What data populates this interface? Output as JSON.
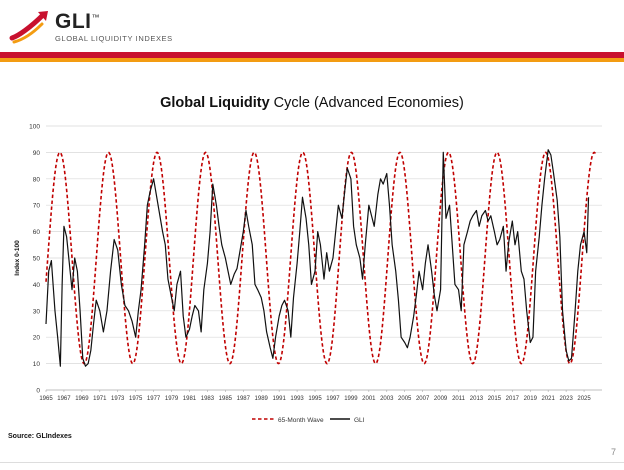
{
  "header": {
    "logo_text": "GLI",
    "logo_trademark": "™",
    "logo_subtitle": "GLOBAL LIQUIDITY INDEXES"
  },
  "colors": {
    "brand_red": "#c8102e",
    "brand_orange": "#f39c12",
    "wave": "#c00000",
    "gli": "#111111",
    "grid": "#d9d9d9"
  },
  "chart_data": {
    "type": "line",
    "title_bold": "Global Liquidity",
    "title_rest": " Cycle (Advanced Economies)",
    "xlabel": "",
    "ylabel": "Index 0-100",
    "xlim": [
      1965,
      2027
    ],
    "ylim": [
      0,
      100
    ],
    "y_ticks": [
      0,
      10,
      20,
      30,
      40,
      50,
      60,
      70,
      80,
      90,
      100
    ],
    "x_ticks": [
      1965,
      1967,
      1969,
      1971,
      1973,
      1975,
      1977,
      1979,
      1981,
      1983,
      1985,
      1987,
      1989,
      1991,
      1993,
      1995,
      1997,
      1999,
      2001,
      2003,
      2005,
      2007,
      2009,
      2011,
      2013,
      2015,
      2017,
      2019,
      2021,
      2023,
      2025
    ],
    "grid": "horizontal",
    "legend_position": "bottom-center",
    "series": [
      {
        "name": "65-Month Wave",
        "style": "dashed",
        "wave": {
          "period_months": 65,
          "center": 50,
          "amplitude": 40,
          "first_peak": 1966.55,
          "start": 1965,
          "end": 2026.35
        }
      },
      {
        "name": "GLI",
        "style": "solid",
        "x": [
          1965.0,
          1965.3,
          1965.6,
          1966.0,
          1966.3,
          1966.6,
          1966.8,
          1967.0,
          1967.3,
          1967.6,
          1967.9,
          1968.2,
          1968.5,
          1968.8,
          1969.1,
          1969.4,
          1969.7,
          1970.0,
          1970.3,
          1970.6,
          1971.0,
          1971.4,
          1971.8,
          1972.2,
          1972.6,
          1973.0,
          1973.4,
          1973.8,
          1974.2,
          1974.6,
          1975.0,
          1975.3,
          1975.6,
          1976.0,
          1976.3,
          1976.6,
          1977.0,
          1977.3,
          1977.6,
          1978.0,
          1978.3,
          1978.6,
          1979.0,
          1979.3,
          1979.6,
          1980.0,
          1980.3,
          1980.6,
          1981.0,
          1981.3,
          1981.6,
          1982.0,
          1982.3,
          1982.6,
          1983.0,
          1983.3,
          1983.6,
          1984.0,
          1984.3,
          1984.6,
          1985.0,
          1985.3,
          1985.6,
          1986.0,
          1986.3,
          1986.6,
          1987.0,
          1987.3,
          1987.6,
          1988.0,
          1988.3,
          1988.6,
          1989.0,
          1989.3,
          1989.6,
          1990.0,
          1990.3,
          1990.6,
          1991.0,
          1991.3,
          1991.6,
          1992.0,
          1992.3,
          1992.6,
          1993.0,
          1993.3,
          1993.6,
          1994.0,
          1994.3,
          1994.6,
          1995.0,
          1995.3,
          1995.6,
          1996.0,
          1996.3,
          1996.6,
          1997.0,
          1997.3,
          1997.6,
          1998.0,
          1998.3,
          1998.6,
          1999.0,
          1999.3,
          1999.6,
          2000.0,
          2000.3,
          2000.6,
          2001.0,
          2001.3,
          2001.6,
          2002.0,
          2002.3,
          2002.6,
          2003.0,
          2003.3,
          2003.6,
          2004.0,
          2004.3,
          2004.6,
          2005.0,
          2005.3,
          2005.6,
          2006.0,
          2006.3,
          2006.6,
          2007.0,
          2007.3,
          2007.6,
          2008.0,
          2008.3,
          2008.6,
          2009.0,
          2009.3,
          2009.6,
          2010.0,
          2010.3,
          2010.6,
          2011.0,
          2011.3,
          2011.6,
          2012.0,
          2012.3,
          2012.6,
          2013.0,
          2013.3,
          2013.6,
          2014.0,
          2014.3,
          2014.6,
          2015.0,
          2015.3,
          2015.6,
          2016.0,
          2016.3,
          2016.6,
          2017.0,
          2017.3,
          2017.6,
          2018.0,
          2018.3,
          2018.6,
          2019.0,
          2019.3,
          2019.6,
          2020.0,
          2020.3,
          2020.6,
          2021.0,
          2021.3,
          2021.6,
          2022.0,
          2022.3,
          2022.6,
          2023.0,
          2023.3,
          2023.6,
          2024.0,
          2024.3,
          2024.6,
          2025.0,
          2025.3,
          2025.5
        ],
        "y": [
          25,
          45,
          49,
          30,
          20,
          9,
          40,
          62,
          58,
          48,
          38,
          50,
          45,
          30,
          12,
          9,
          10,
          15,
          25,
          34,
          30,
          22,
          30,
          45,
          57,
          53,
          40,
          32,
          30,
          26,
          20,
          30,
          38,
          55,
          70,
          75,
          80,
          74,
          68,
          60,
          55,
          42,
          35,
          30,
          40,
          45,
          28,
          20,
          23,
          28,
          32,
          30,
          22,
          38,
          48,
          60,
          78,
          70,
          62,
          55,
          50,
          45,
          40,
          44,
          46,
          52,
          60,
          68,
          62,
          55,
          40,
          38,
          35,
          30,
          22,
          16,
          12,
          20,
          28,
          32,
          34,
          30,
          20,
          35,
          48,
          60,
          73,
          65,
          55,
          40,
          45,
          60,
          55,
          42,
          52,
          45,
          50,
          60,
          70,
          65,
          75,
          84,
          80,
          62,
          55,
          50,
          42,
          55,
          70,
          66,
          62,
          74,
          80,
          78,
          82,
          70,
          55,
          45,
          34,
          20,
          18,
          16,
          20,
          28,
          36,
          45,
          38,
          48,
          55,
          45,
          36,
          30,
          38,
          90,
          65,
          70,
          55,
          40,
          38,
          30,
          55,
          60,
          64,
          66,
          68,
          62,
          66,
          68,
          64,
          66,
          60,
          55,
          57,
          62,
          45,
          56,
          64,
          55,
          60,
          45,
          42,
          30,
          18,
          20,
          45,
          58,
          70,
          80,
          91,
          89,
          82,
          72,
          58,
          30,
          15,
          11,
          12,
          30,
          45,
          55,
          60,
          52,
          73
        ]
      }
    ]
  },
  "source": "Source: GLIndexes",
  "page_number": "7"
}
